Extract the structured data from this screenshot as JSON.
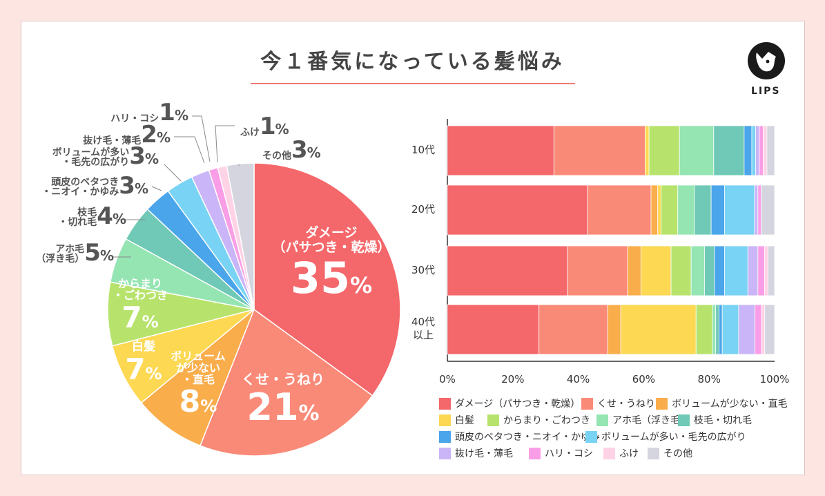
{
  "title": "今１番気になっている髪悩み",
  "logo_text": "LIPS",
  "colors": [
    "#f4676a",
    "#fa8a78",
    "#f9ad4b",
    "#fcd853",
    "#b7e36c",
    "#95e5b3",
    "#6fc9b6",
    "#4aa5ea",
    "#79d3f4",
    "#c9b5f7",
    "#f99ee6",
    "#ffd3e6",
    "#d5d5df"
  ],
  "pie": {
    "labels": [
      "ダメージ（パサつき・乾燥）",
      "くせ・うねり",
      "ボリュームが少ない・直毛",
      "白髪",
      "からまり・ごわつき",
      "アホ毛（浮き毛）",
      "枝毛・切れ毛",
      "頭皮のベタつき・ニオイ・かゆみ",
      "ボリュームが多い・毛先の広がり",
      "抜け毛・薄毛",
      "ハリ・コシ",
      "ふけ",
      "その他"
    ],
    "values": [
      35,
      21,
      8,
      7,
      7,
      5,
      4,
      3,
      3,
      2,
      1,
      1,
      3
    ],
    "inside": {
      "damage": {
        "label": "ダメージ\n（パサつき・乾燥）",
        "value": "35",
        "pct": "%"
      },
      "kuse": {
        "label": "くせ・うねり",
        "value": "21",
        "pct": "%"
      },
      "volume_low": {
        "label": "ボリューム\nが少ない\n・直毛",
        "value": "8",
        "pct": "%"
      },
      "shiraga": {
        "label": "白髪",
        "value": "7",
        "pct": "%"
      },
      "karamari": {
        "label": "からまり\n・ごわつき",
        "value": "7",
        "pct": "%"
      }
    },
    "outside": {
      "ahoge": {
        "label": "アホ毛\n（浮き毛）",
        "value": "5",
        "pct": "%"
      },
      "edage": {
        "label": "枝毛\n・切れ毛",
        "value": "4",
        "pct": "%"
      },
      "toohi": {
        "label": "頭皮のベタつき\n・ニオイ・かゆみ",
        "value": "3",
        "pct": "%"
      },
      "volume_high": {
        "label": "ボリュームが多い\n・毛先の広がり",
        "value": "3",
        "pct": "%"
      },
      "nukege": {
        "label": "抜け毛・薄毛",
        "value": "2",
        "pct": "%"
      },
      "hari": {
        "label": "ハリ・コシ",
        "value": "1",
        "pct": "%"
      },
      "fuke": {
        "label": "ふけ",
        "value": "1",
        "pct": "%"
      },
      "sonota": {
        "label": "その他",
        "value": "3",
        "pct": "%"
      }
    }
  },
  "chart_data": {
    "type": "bar",
    "orientation": "horizontal",
    "stacked": "percent",
    "categories": [
      "10代",
      "20代",
      "30代",
      "40代\n以上"
    ],
    "xlim": [
      0,
      100
    ],
    "xticks": [
      "0%",
      "20%",
      "40%",
      "60%",
      "80%",
      "100%"
    ],
    "series": [
      {
        "name": "ダメージ（パサつき・乾燥）",
        "values": [
          28,
          42,
          36,
          28
        ]
      },
      {
        "name": "くせ・うねり",
        "values": [
          24,
          19,
          18,
          21
        ]
      },
      {
        "name": "ボリュームが少ない・直毛",
        "values": [
          0,
          2,
          4,
          4
        ]
      },
      {
        "name": "白髪",
        "values": [
          1,
          1,
          9,
          23
        ]
      },
      {
        "name": "からまり・ごわつき",
        "values": [
          8,
          5,
          6,
          5
        ]
      },
      {
        "name": "アホ毛（浮き毛）",
        "values": [
          9,
          5,
          4,
          1
        ]
      },
      {
        "name": "枝毛・切れ毛",
        "values": [
          8,
          5,
          3,
          1
        ]
      },
      {
        "name": "頭皮のベタつき・ニオイ・かゆみ",
        "values": [
          2,
          4,
          3,
          1
        ]
      },
      {
        "name": "ボリュームが多い・毛先の広がり",
        "values": [
          1,
          9,
          7,
          5
        ]
      },
      {
        "name": "抜け毛・薄毛",
        "values": [
          1,
          1,
          3,
          5
        ]
      },
      {
        "name": "ハリ・コシ",
        "values": [
          1,
          1,
          2,
          2
        ]
      },
      {
        "name": "ふけ",
        "values": [
          1,
          0,
          1,
          1
        ]
      },
      {
        "name": "その他",
        "values": [
          2,
          4,
          2,
          3
        ]
      }
    ]
  },
  "legend": [
    "ダメージ（パサつき・乾燥）",
    "くせ・うねり",
    "ボリュームが少ない・直毛",
    "白髪",
    "からまり・ごわつき",
    "アホ毛（浮き毛）",
    "枝毛・切れ毛",
    "頭皮のベタつき・ニオイ・かゆみ",
    "ボリュームが多い・毛先の広がり",
    "抜け毛・薄毛",
    "ハリ・コシ",
    "ふけ",
    "その他"
  ]
}
